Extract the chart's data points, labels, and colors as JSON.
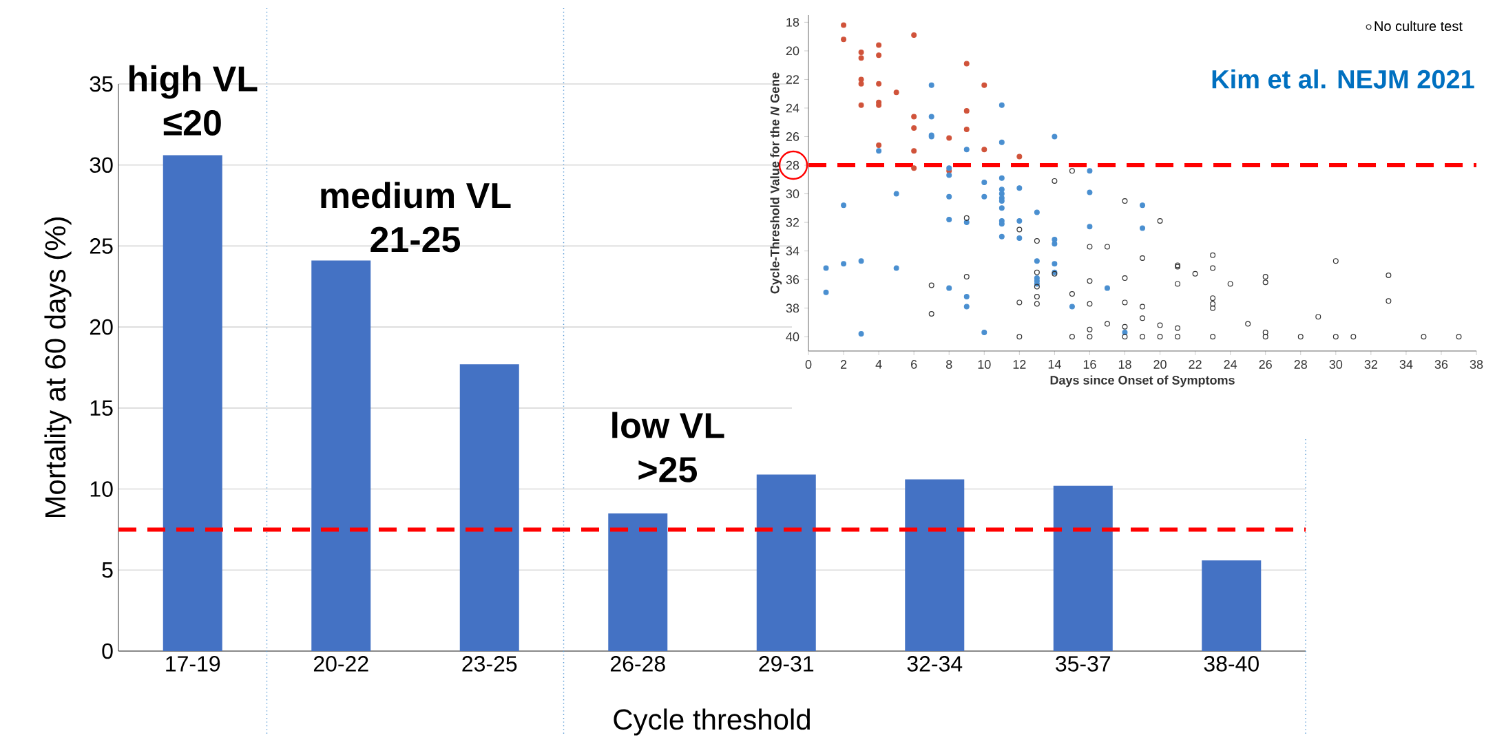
{
  "chart_data": [
    {
      "type": "bar",
      "categories": [
        "17-19",
        "20-22",
        "23-25",
        "26-28",
        "29-31",
        "32-34",
        "35-37",
        "38-40"
      ],
      "values": [
        30.6,
        24.1,
        17.7,
        8.5,
        10.9,
        10.6,
        10.2,
        5.6
      ],
      "color": "#4472c4",
      "xlabel": "Cycle threshold",
      "ylabel": "Mortality at 60 days (%)",
      "ylim": [
        0,
        35
      ],
      "yticks": [
        0,
        5,
        10,
        15,
        20,
        25,
        30,
        35
      ],
      "grid": "y",
      "ref_lines": [
        {
          "axis": "y",
          "value": 7.5,
          "color": "#ff0000",
          "line_style": "dashed"
        }
      ],
      "annotations": [
        "high VL ≤20",
        "medium VL 21-25",
        "low VL >25"
      ]
    },
    {
      "type": "scatter",
      "xlabel": "Days since Onset of Symptoms",
      "ylabel": "Cycle-Threshold Value for the *N* Gene",
      "xlim": [
        0,
        38
      ],
      "xticks": [
        0,
        2,
        4,
        6,
        8,
        10,
        12,
        14,
        16,
        18,
        20,
        22,
        24,
        26,
        28,
        30,
        32,
        34,
        36,
        38
      ],
      "ylim": [
        41,
        17.5
      ],
      "yticks": [
        18,
        20,
        22,
        24,
        26,
        28,
        30,
        32,
        34,
        36,
        38,
        40
      ],
      "marker": "circle",
      "legend": "top right",
      "ref_lines": [
        {
          "axis": "y",
          "value": 28,
          "color": "#ff0000",
          "line_style": "dashed"
        }
      ],
      "annotations": [
        "Kim et al. NEJM 2021"
      ],
      "series": [
        {
          "color": "#d0533a",
          "x": [
            2,
            2,
            3,
            3,
            3,
            3,
            3,
            4,
            4,
            4,
            4,
            4,
            4,
            5,
            6,
            6,
            6,
            6,
            6,
            8,
            8,
            9,
            9,
            9,
            10,
            10,
            12
          ],
          "values": [
            18.2,
            19.2,
            20.1,
            20.5,
            22.0,
            22.3,
            23.8,
            19.6,
            20.3,
            22.3,
            23.6,
            23.8,
            26.6,
            22.9,
            18.9,
            24.6,
            25.4,
            27.0,
            28.2,
            26.1,
            28.4,
            20.9,
            24.2,
            25.5,
            22.4,
            26.9,
            27.4
          ]
        },
        {
          "color": "#4a8fd0",
          "x": [
            1,
            1,
            2,
            2,
            3,
            3,
            4,
            5,
            5,
            7,
            7,
            7,
            7,
            8,
            8,
            8,
            8,
            8,
            9,
            9,
            9,
            9,
            10,
            10,
            10,
            11,
            11,
            11,
            11,
            11,
            11,
            11,
            11,
            11,
            11,
            11,
            12,
            12,
            12,
            13,
            13,
            13,
            13,
            13,
            14,
            14,
            14,
            14,
            14,
            15,
            16,
            16,
            16,
            17,
            18,
            19,
            19
          ],
          "values": [
            35.2,
            36.9,
            30.8,
            34.9,
            34.7,
            39.8,
            27.0,
            30.0,
            35.2,
            22.4,
            24.6,
            25.9,
            26.0,
            28.2,
            28.7,
            30.2,
            31.8,
            36.6,
            26.9,
            32.0,
            37.2,
            37.9,
            29.2,
            30.2,
            39.7,
            23.8,
            26.4,
            28.9,
            29.7,
            30.0,
            30.3,
            30.5,
            31.0,
            31.9,
            32.1,
            33.0,
            29.6,
            31.9,
            33.1,
            31.3,
            34.7,
            35.9,
            36.1,
            36.3,
            26.0,
            33.2,
            33.5,
            34.9,
            35.5,
            37.9,
            28.4,
            29.9,
            32.3,
            36.6,
            39.7,
            30.8,
            32.4
          ]
        },
        {
          "name": "No culture test",
          "color": "#333333",
          "x": [
            7,
            7,
            9,
            9,
            12,
            12,
            12,
            13,
            13,
            13,
            13,
            13,
            14,
            14,
            15,
            15,
            15,
            16,
            16,
            16,
            16,
            16,
            17,
            17,
            18,
            18,
            18,
            18,
            18,
            19,
            19,
            19,
            19,
            20,
            20,
            20,
            21,
            21,
            21,
            21,
            21,
            22,
            23,
            23,
            23,
            23,
            23,
            23,
            24,
            25,
            26,
            26,
            26,
            26,
            28,
            29,
            30,
            30,
            31,
            33,
            33,
            35,
            37
          ],
          "values": [
            36.4,
            38.4,
            31.7,
            35.8,
            32.5,
            37.6,
            40.0,
            33.3,
            35.5,
            36.5,
            37.2,
            37.7,
            29.1,
            35.6,
            28.4,
            37.0,
            40.0,
            33.7,
            36.1,
            37.7,
            39.5,
            40.0,
            33.7,
            39.1,
            30.5,
            35.9,
            37.6,
            39.3,
            40.0,
            34.5,
            37.9,
            38.7,
            40.0,
            31.9,
            39.2,
            40.0,
            35.0,
            35.1,
            36.3,
            39.4,
            40.0,
            35.6,
            34.3,
            35.2,
            37.3,
            37.7,
            38.0,
            40.0,
            36.3,
            39.1,
            35.8,
            36.2,
            39.7,
            40.0,
            40.0,
            38.6,
            34.7,
            40.0,
            40.0,
            35.7,
            37.5,
            40.0,
            40.0
          ]
        }
      ]
    }
  ]
}
